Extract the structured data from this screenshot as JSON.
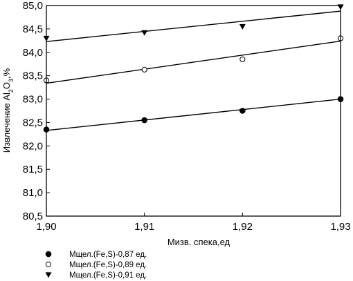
{
  "chart_data": {
    "type": "scatter",
    "title": "",
    "xlabel": "Мизв. спека,ед",
    "ylabel_parts": [
      "Извлечение Al",
      "2",
      "O",
      "3",
      ",%"
    ],
    "xlim": [
      1.9,
      1.93
    ],
    "ylim": [
      80.5,
      85.0
    ],
    "x_ticks": [
      1.9,
      1.91,
      1.92,
      1.93
    ],
    "x_tick_labels": [
      "1,90",
      "1,91",
      "1,92",
      "1,93"
    ],
    "y_ticks": [
      80.5,
      81.0,
      81.5,
      82.0,
      82.5,
      83.0,
      83.5,
      84.0,
      84.5,
      85.0
    ],
    "y_tick_labels": [
      "80,5",
      "81,0",
      "81,5",
      "82,0",
      "82,5",
      "83,0",
      "83,5",
      "84,0",
      "84,5",
      "85,0"
    ],
    "grid": false,
    "legend_position": "bottom-left",
    "series": [
      {
        "name": "Мщел.(Fe,S)-0,87 ед.",
        "marker": "filled-circle",
        "x": [
          1.9,
          1.91,
          1.92,
          1.93
        ],
        "y": [
          82.35,
          82.55,
          82.75,
          83.0
        ],
        "fit": [
          82.33,
          83.0
        ]
      },
      {
        "name": "Мщел.(Fe,S)-0,89 ед.",
        "marker": "open-circle",
        "x": [
          1.9,
          1.91,
          1.92,
          1.93
        ],
        "y": [
          83.4,
          83.63,
          83.85,
          84.3
        ],
        "fit": [
          83.34,
          84.24
        ]
      },
      {
        "name": "Мщел.(Fe,S)-0,91 ед.",
        "marker": "filled-down-triangle",
        "x": [
          1.9,
          1.91,
          1.92,
          1.93
        ],
        "y": [
          84.3,
          84.42,
          84.55,
          84.97
        ],
        "fit": [
          84.23,
          84.88
        ]
      }
    ]
  }
}
